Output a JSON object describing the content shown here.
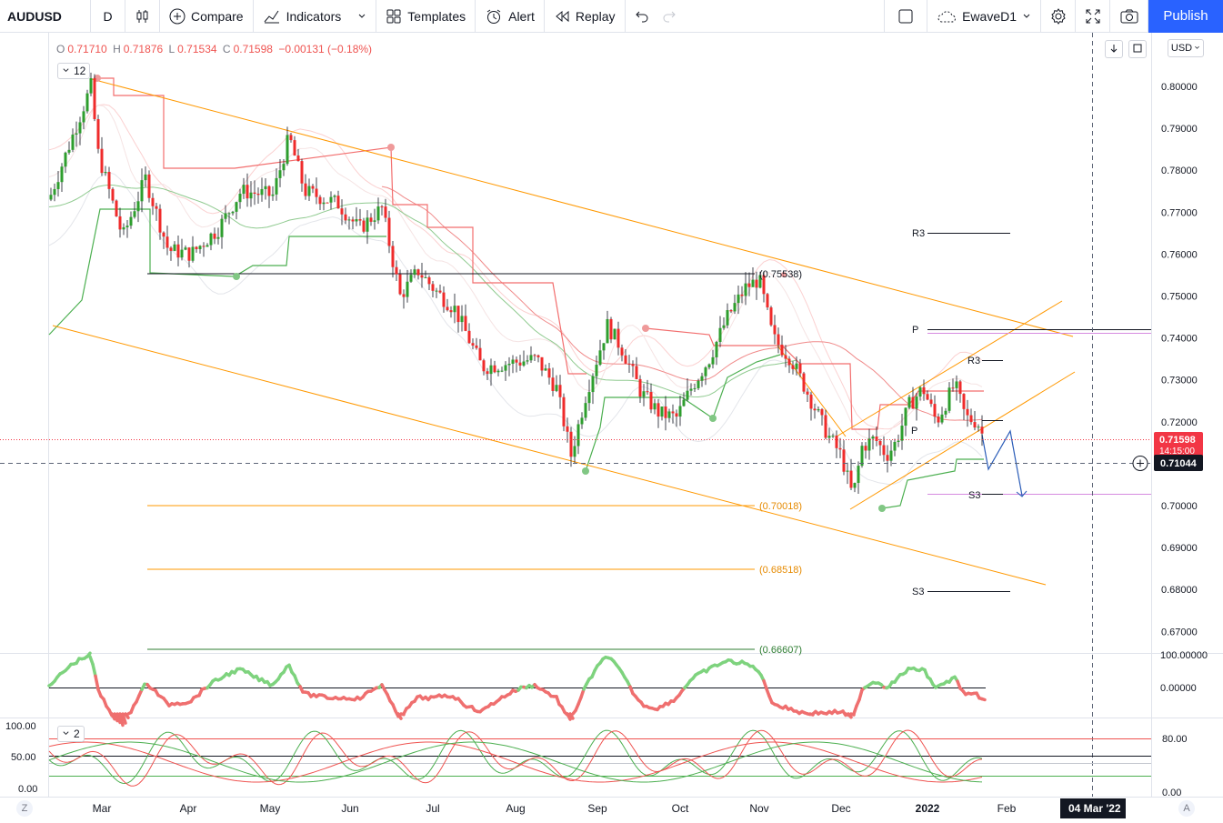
{
  "toolbar": {
    "symbol": "AUDUSD",
    "interval": "D",
    "compare": "Compare",
    "indicators": "Indicators",
    "templates": "Templates",
    "alert": "Alert",
    "replay": "Replay",
    "layout_name": "EwaveD1",
    "publish": "Publish"
  },
  "legend": {
    "open_label": "O",
    "open": "0.71710",
    "high_label": "H",
    "high": "0.71876",
    "low_label": "L",
    "low": "0.71534",
    "close_label": "C",
    "close": "0.71598",
    "change": "−0.00131 (−0.18%)"
  },
  "indicator_badges": {
    "main": "12",
    "lower": "2"
  },
  "currency": "USD",
  "scale_buttons": {
    "left": "Z",
    "right": "A"
  },
  "colors": {
    "up": "#26a69a",
    "candle_up": "#2e9e2e",
    "candle_down": "#ef2b2b",
    "orange": "#ff9800",
    "accent": "#2962ff",
    "price_label": "#f23645"
  },
  "chart_data": [
    {
      "type": "candlestick",
      "title": "AUDUSD",
      "y_ticks": [
        "0.80000",
        "0.79000",
        "0.78000",
        "0.77000",
        "0.76000",
        "0.75000",
        "0.74000",
        "0.73000",
        "0.72000",
        "0.71000",
        "0.70000",
        "0.69000",
        "0.68000",
        "0.67000"
      ],
      "ylim": [
        0.6623,
        0.8087
      ],
      "x_ticks": [
        "Mar",
        "Apr",
        "May",
        "Jun",
        "Jul",
        "Aug",
        "Sep",
        "Oct",
        "Nov",
        "Dec",
        "2022",
        "Feb"
      ],
      "crosshair_date": "04 Mar '22",
      "last_price": "0.71598",
      "countdown": "14:15:00",
      "crosshair_price": "0.71044",
      "levels": [
        {
          "label": "(0.75538)",
          "value": 0.75538
        },
        {
          "label": "(0.70018)",
          "value": 0.70018
        },
        {
          "label": "(0.68518)",
          "value": 0.68518
        },
        {
          "label": "(0.66607)",
          "value": 0.66607
        }
      ],
      "pivots": [
        "R3",
        "P",
        "R3",
        "P",
        "S3",
        "S3"
      ]
    },
    {
      "type": "line",
      "y_ticks": [
        "100.00000",
        "0.00000"
      ]
    },
    {
      "type": "line",
      "y_ticks_left": [
        "100.00",
        "50.00",
        "0.00"
      ],
      "y_ticks_right": [
        "80.00",
        "0.00"
      ]
    }
  ]
}
